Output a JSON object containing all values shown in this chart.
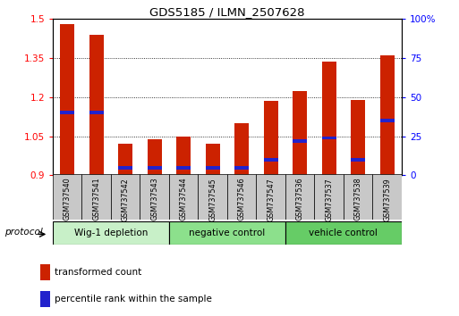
{
  "title": "GDS5185 / ILMN_2507628",
  "samples": [
    "GSM737540",
    "GSM737541",
    "GSM737542",
    "GSM737543",
    "GSM737544",
    "GSM737545",
    "GSM737546",
    "GSM737547",
    "GSM737536",
    "GSM737537",
    "GSM737538",
    "GSM737539"
  ],
  "red_values": [
    1.48,
    1.44,
    1.02,
    1.04,
    1.05,
    1.02,
    1.1,
    1.185,
    1.225,
    1.335,
    1.19,
    1.36
  ],
  "blue_pct": [
    40,
    40,
    5,
    5,
    5,
    5,
    5,
    10,
    22,
    24,
    10,
    35
  ],
  "y_min": 0.9,
  "y_max": 1.5,
  "y_ticks": [
    0.9,
    1.05,
    1.2,
    1.35,
    1.5
  ],
  "right_ticks": [
    0,
    25,
    50,
    75,
    100
  ],
  "groups": [
    {
      "label": "Wig-1 depletion",
      "start": 0,
      "end": 4,
      "color": "#c8f0c8"
    },
    {
      "label": "negative control",
      "start": 4,
      "end": 8,
      "color": "#8ce08c"
    },
    {
      "label": "vehicle control",
      "start": 8,
      "end": 12,
      "color": "#66cc66"
    }
  ],
  "bar_color": "#cc2200",
  "blue_color": "#2222cc",
  "bar_width": 0.5,
  "protocol_label": "protocol",
  "legend_red": "transformed count",
  "legend_blue": "percentile rank within the sample",
  "gray_box_color": "#c8c8c8",
  "group_border_color": "#888888"
}
